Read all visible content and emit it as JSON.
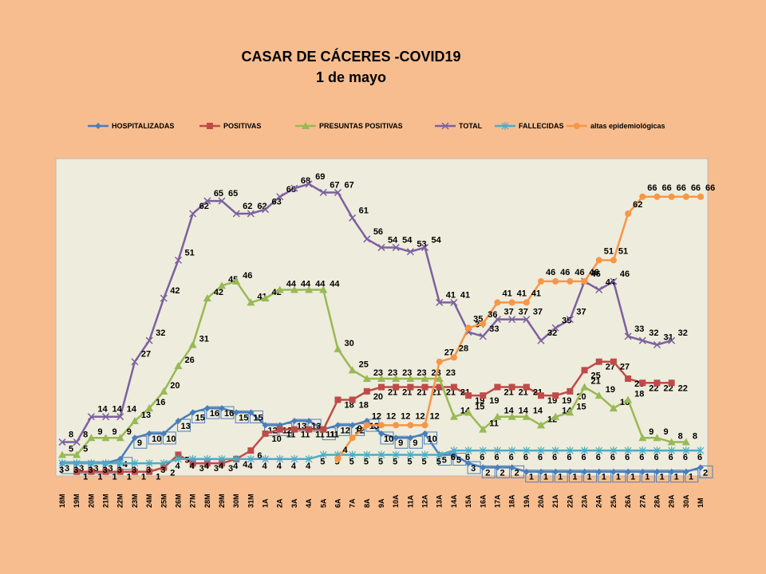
{
  "title": "CASAR DE CÁCERES -COVID19",
  "subtitle": "1 de mayo",
  "chart_data": {
    "type": "line",
    "title": "CASAR DE CÁCERES -COVID19",
    "subtitle": "1 de mayo",
    "xlabel": "",
    "ylabel": "",
    "ylim": [
      0,
      75
    ],
    "grid": false,
    "legend_position": "top",
    "plot_background": "#eeecdc",
    "categories": [
      "18M",
      "19M",
      "20M",
      "21M",
      "22M",
      "23M",
      "24M",
      "25M",
      "26M",
      "27M",
      "28M",
      "29M",
      "30M",
      "31M",
      "1A",
      "2A",
      "3A",
      "4A",
      "5A",
      "6A",
      "7A",
      "8A",
      "9A",
      "10A",
      "11A",
      "12A",
      "13A",
      "14A",
      "15A",
      "16A",
      "17A",
      "18A",
      "19A",
      "20A",
      "21A",
      "22A",
      "23A",
      "24A",
      "25A",
      "26A",
      "27A",
      "28A",
      "29A",
      "30A",
      "1M"
    ],
    "series": [
      {
        "name": "HOSPITALIZADAS",
        "color": "#4a7ebb",
        "marker": "diamond",
        "values": [
          3,
          3,
          3,
          3,
          4,
          9,
          10,
          10,
          13,
          15,
          16,
          16,
          15,
          15,
          12,
          12,
          13,
          13,
          11,
          12,
          12,
          13,
          10,
          9,
          9,
          10,
          5,
          5,
          3,
          2,
          2,
          2,
          1,
          1,
          1,
          1,
          1,
          1,
          1,
          1,
          1,
          1,
          1,
          1,
          2
        ]
      },
      {
        "name": "POSITIVAS",
        "color": "#be4b48",
        "marker": "square",
        "values": [
          null,
          1,
          1,
          1,
          1,
          1,
          1,
          2,
          5,
          3,
          3,
          3,
          4,
          6,
          10,
          11,
          11,
          11,
          11,
          18,
          18,
          20,
          21,
          21,
          21,
          21,
          21,
          21,
          19,
          19,
          21,
          21,
          21,
          19,
          19,
          20,
          25,
          27,
          27,
          23,
          22,
          22,
          22,
          null,
          null
        ]
      },
      {
        "name": "PRESUNTAS POSITIVAS",
        "color": "#98b954",
        "marker": "triangle",
        "values": [
          5,
          5,
          9,
          9,
          9,
          13,
          16,
          20,
          26,
          31,
          42,
          45,
          46,
          41,
          42,
          44,
          44,
          44,
          44,
          30,
          25,
          23,
          23,
          23,
          23,
          23,
          23,
          14,
          15,
          11,
          14,
          14,
          14,
          12,
          14,
          15,
          21,
          19,
          16,
          18,
          9,
          9,
          8,
          8,
          null
        ]
      },
      {
        "name": "TOTAL",
        "color": "#7d60a0",
        "marker": "x",
        "values": [
          8,
          8,
          14,
          14,
          14,
          27,
          32,
          42,
          51,
          62,
          65,
          65,
          62,
          62,
          63,
          66,
          68,
          69,
          67,
          67,
          61,
          56,
          54,
          54,
          53,
          54,
          41,
          41,
          34,
          33,
          37,
          37,
          37,
          32,
          35,
          37,
          46,
          44,
          46,
          33,
          32,
          31,
          32,
          null,
          null
        ]
      },
      {
        "name": "FALLECIDAS",
        "color": "#4bacc6",
        "marker": "star",
        "values": [
          3,
          3,
          3,
          3,
          3,
          3,
          3,
          3,
          4,
          4,
          4,
          4,
          4,
          4,
          4,
          4,
          4,
          4,
          5,
          5,
          5,
          5,
          5,
          5,
          5,
          5,
          5,
          6,
          6,
          6,
          6,
          6,
          6,
          6,
          6,
          6,
          6,
          6,
          6,
          6,
          6,
          6,
          6,
          6,
          6
        ]
      },
      {
        "name": "altas epidemiológicas",
        "color": "#f79646",
        "marker": "circle",
        "values": [
          null,
          null,
          null,
          null,
          null,
          null,
          null,
          null,
          null,
          null,
          null,
          null,
          null,
          null,
          null,
          null,
          null,
          null,
          null,
          4,
          9,
          12,
          12,
          12,
          12,
          12,
          27,
          28,
          35,
          36,
          41,
          41,
          41,
          46,
          46,
          46,
          46,
          51,
          51,
          62,
          66,
          66,
          66,
          66,
          66
        ]
      }
    ]
  }
}
